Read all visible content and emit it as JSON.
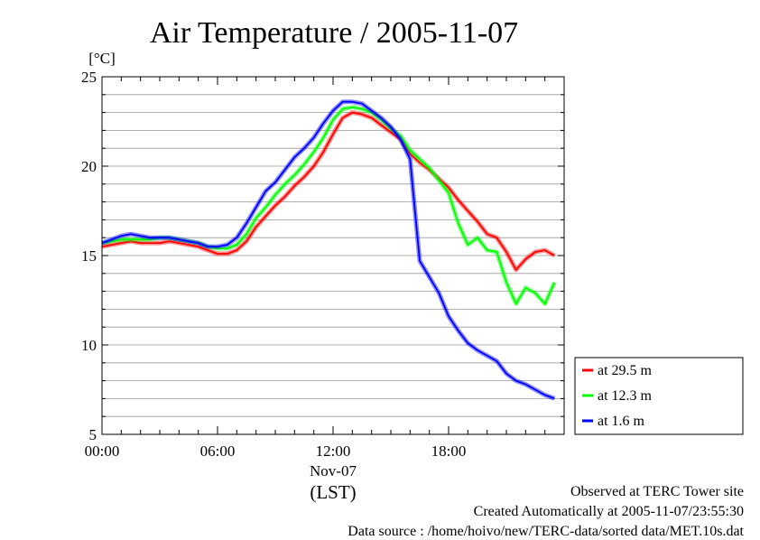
{
  "chart_data": {
    "type": "line",
    "title": "Air Temperature / 2005-11-07",
    "ylabel": "[°C]",
    "xlabel": "(LST)",
    "date_label": "Nov-07",
    "ylim": [
      5,
      25
    ],
    "xlim": [
      0,
      24
    ],
    "yticks": [
      5,
      10,
      15,
      20,
      25
    ],
    "xtick_labels": [
      "00:00",
      "06:00",
      "12:00",
      "18:00"
    ],
    "xtick_values": [
      0,
      6,
      12,
      18
    ],
    "grid": true,
    "legend_position": "lower-right outside",
    "x_hours": [
      0,
      0.5,
      1,
      1.5,
      2,
      2.5,
      3,
      3.5,
      4,
      4.5,
      5,
      5.5,
      6,
      6.5,
      7,
      7.5,
      8,
      8.5,
      9,
      9.5,
      10,
      10.5,
      11,
      11.5,
      12,
      12.5,
      13,
      13.5,
      14,
      14.5,
      15,
      15.5,
      16,
      16.5,
      17,
      17.5,
      18,
      18.5,
      19,
      19.5,
      20,
      20.5,
      21,
      21.5,
      22,
      22.5,
      23,
      23.5
    ],
    "series": [
      {
        "name": "at 29.5 m",
        "color": "#ff0000",
        "values": [
          15.5,
          15.6,
          15.7,
          15.8,
          15.7,
          15.7,
          15.7,
          15.8,
          15.7,
          15.6,
          15.5,
          15.3,
          15.1,
          15.1,
          15.3,
          15.8,
          16.6,
          17.2,
          17.8,
          18.3,
          18.9,
          19.4,
          20.0,
          20.8,
          21.8,
          22.7,
          23.0,
          22.9,
          22.7,
          22.3,
          21.9,
          21.5,
          20.7,
          20.2,
          19.8,
          19.3,
          18.8,
          18.1,
          17.5,
          16.9,
          16.2,
          16.0,
          15.2,
          14.2,
          14.8,
          15.2,
          15.3,
          15.0
        ]
      },
      {
        "name": "at 12.3 m",
        "color": "#00ff00",
        "values": [
          15.7,
          15.8,
          15.9,
          15.9,
          15.9,
          15.9,
          16.0,
          16.0,
          15.9,
          15.8,
          15.7,
          15.5,
          15.4,
          15.4,
          15.6,
          16.2,
          17.1,
          17.7,
          18.4,
          19.0,
          19.5,
          20.1,
          20.8,
          21.6,
          22.6,
          23.2,
          23.3,
          23.2,
          23.0,
          22.6,
          22.1,
          21.7,
          20.9,
          20.4,
          19.9,
          19.2,
          18.5,
          16.8,
          15.6,
          16.0,
          15.3,
          15.2,
          13.5,
          12.3,
          13.2,
          12.9,
          12.3,
          13.5
        ]
      },
      {
        "name": "at 1.6 m",
        "color": "#0000ff",
        "values": [
          15.7,
          15.9,
          16.1,
          16.2,
          16.1,
          16.0,
          16.0,
          16.0,
          15.9,
          15.8,
          15.7,
          15.5,
          15.5,
          15.6,
          16.0,
          16.8,
          17.7,
          18.6,
          19.1,
          19.8,
          20.5,
          21.0,
          21.6,
          22.4,
          23.1,
          23.6,
          23.6,
          23.5,
          23.1,
          22.7,
          22.2,
          21.5,
          20.4,
          14.7,
          13.8,
          12.9,
          11.6,
          10.8,
          10.1,
          9.7,
          9.4,
          9.1,
          8.4,
          8.0,
          7.8,
          7.5,
          7.2,
          7.0
        ]
      }
    ]
  },
  "footer": {
    "line1": "Observed at TERC Tower site",
    "line2": "Created Automatically at 2005-11-07/23:55:30",
    "line3": "Data source : /home/hoivo/new/TERC-data/sorted  data/MET.10s.dat"
  }
}
